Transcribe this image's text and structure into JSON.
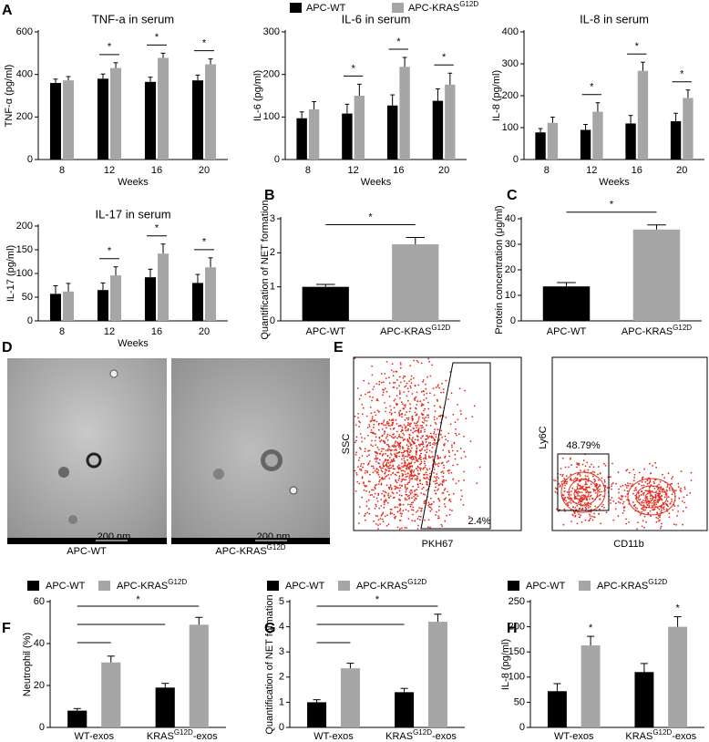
{
  "panel_labels": [
    "A",
    "B",
    "C",
    "D",
    "E",
    "F",
    "G",
    "H"
  ],
  "legend": [
    {
      "name": "APC-WT",
      "color": "#000000"
    },
    {
      "name": "APC-KRAS",
      "name_superscript": "G12D",
      "color": "#a6a6a6"
    }
  ],
  "chart_data": [
    {
      "type": "bar",
      "title": "TNF-a in serum",
      "y_label": "TNF-α (pg/ml)",
      "x_label": "Weeks",
      "categories": [
        "8",
        "12",
        "16",
        "20"
      ],
      "series": [
        {
          "color": "#000000",
          "values": [
            360,
            380,
            365,
            372
          ],
          "errors": [
            18,
            22,
            22,
            25
          ]
        },
        {
          "color": "#a6a6a6",
          "values": [
            372,
            430,
            478,
            448
          ],
          "errors": [
            18,
            25,
            22,
            25
          ]
        }
      ],
      "significance": [
        null,
        "*",
        "*",
        "*"
      ],
      "ylim": [
        0,
        600
      ],
      "yticks": [
        0,
        200,
        400,
        600
      ]
    },
    {
      "type": "bar",
      "title": "IL-6 in serum",
      "y_label": "IL-6 (pg/ml)",
      "x_label": "Weeks",
      "categories": [
        "8",
        "12",
        "16",
        "20"
      ],
      "series": [
        {
          "color": "#000000",
          "values": [
            97,
            108,
            127,
            138
          ],
          "errors": [
            15,
            22,
            25,
            28
          ]
        },
        {
          "color": "#a6a6a6",
          "values": [
            118,
            150,
            218,
            176
          ],
          "errors": [
            18,
            27,
            22,
            27
          ]
        }
      ],
      "significance": [
        null,
        "*",
        "*",
        "*"
      ],
      "ylim": [
        0,
        300
      ],
      "yticks": [
        0,
        100,
        200,
        300
      ]
    },
    {
      "type": "bar",
      "title": "IL-8 in serum",
      "y_label": "IL-8 (pg/ml)",
      "x_label": "Weeks",
      "categories": [
        "8",
        "12",
        "16",
        "20"
      ],
      "series": [
        {
          "color": "#000000",
          "values": [
            85,
            93,
            113,
            120
          ],
          "errors": [
            12,
            17,
            25,
            25
          ]
        },
        {
          "color": "#a6a6a6",
          "values": [
            115,
            150,
            278,
            193
          ],
          "errors": [
            18,
            28,
            27,
            25
          ]
        }
      ],
      "significance": [
        null,
        "*",
        "*",
        "*"
      ],
      "ylim": [
        0,
        400
      ],
      "yticks": [
        0,
        100,
        200,
        300,
        400
      ]
    },
    {
      "type": "bar",
      "title": "IL-17 in serum",
      "y_label": "IL-17 (pg/ml)",
      "x_label": "Weeks",
      "categories": [
        "8",
        "12",
        "16",
        "20"
      ],
      "series": [
        {
          "color": "#000000",
          "values": [
            57,
            65,
            92,
            80
          ],
          "errors": [
            17,
            15,
            17,
            18
          ]
        },
        {
          "color": "#a6a6a6",
          "values": [
            62,
            96,
            142,
            113
          ],
          "errors": [
            17,
            18,
            20,
            20
          ]
        }
      ],
      "significance": [
        null,
        "*",
        "*",
        "*"
      ],
      "ylim": [
        0,
        200
      ],
      "yticks": [
        0,
        50,
        100,
        150,
        200
      ]
    },
    {
      "type": "bar",
      "y_label": "Quantification of NET formation",
      "categories": [
        "APC-WT",
        {
          "base": "APC-KRAS",
          "superscript": "G12D"
        }
      ],
      "values": [
        1.0,
        2.25
      ],
      "errors": [
        0.07,
        0.2
      ],
      "colors": [
        "#000000",
        "#a6a6a6"
      ],
      "significance": "*",
      "ylim": [
        0,
        3
      ],
      "yticks": [
        0,
        1,
        2,
        3
      ]
    },
    {
      "type": "bar",
      "y_label": "Protein concentration (μg/ml)",
      "categories": [
        "APC-WT",
        {
          "base": "APC-KRAS",
          "superscript": "G12D"
        }
      ],
      "values": [
        13.5,
        35.8
      ],
      "errors": [
        1.5,
        1.8
      ],
      "colors": [
        "#000000",
        "#a6a6a6"
      ],
      "significance": "*",
      "ylim": [
        0,
        40
      ],
      "yticks": [
        0,
        10,
        20,
        30,
        40
      ]
    },
    {
      "type": "bar",
      "y_label": "Neutrophil (%)",
      "categories": [
        "WT-exos",
        {
          "base": "KRAS",
          "superscript": "G12D",
          "suffix": "-exos"
        }
      ],
      "series": [
        {
          "name": "APC-WT",
          "color": "#000000",
          "values": [
            8,
            19
          ],
          "errors": [
            1,
            2
          ]
        },
        {
          "name": "APC-KRAS",
          "name_superscript": "G12D",
          "color": "#a6a6a6",
          "values": [
            31,
            49
          ],
          "errors": [
            3,
            3.5
          ]
        }
      ],
      "brackets": [
        {
          "from": [
            0,
            0
          ],
          "to": [
            1,
            0
          ]
        },
        {
          "from": [
            0,
            0
          ],
          "to": [
            0,
            1
          ]
        },
        {
          "from": [
            0,
            0
          ],
          "to": [
            1,
            1
          ],
          "text": "*"
        }
      ],
      "ylim": [
        0,
        60
      ],
      "yticks": [
        0,
        20,
        40,
        60
      ]
    },
    {
      "type": "bar",
      "y_label": "Quantification of NET formation",
      "categories": [
        "WT-exos",
        {
          "base": "KRAS",
          "superscript": "G12D",
          "suffix": "-exos"
        }
      ],
      "series": [
        {
          "name": "APC-WT",
          "color": "#000000",
          "values": [
            1.0,
            1.4
          ],
          "errors": [
            0.1,
            0.15
          ]
        },
        {
          "name": "APC-KRAS",
          "name_superscript": "G12D",
          "color": "#a6a6a6",
          "values": [
            2.35,
            4.2
          ],
          "errors": [
            0.2,
            0.3
          ]
        }
      ],
      "brackets": [
        {
          "from": [
            0,
            0
          ],
          "to": [
            1,
            0
          ]
        },
        {
          "from": [
            0,
            0
          ],
          "to": [
            0,
            1
          ]
        },
        {
          "from": [
            0,
            0
          ],
          "to": [
            1,
            1
          ],
          "text": "*"
        }
      ],
      "ylim": [
        0,
        5
      ],
      "yticks": [
        0,
        1,
        2,
        3,
        4,
        5
      ]
    },
    {
      "type": "bar",
      "y_label": "IL-8 (pg/ml)",
      "categories": [
        "WT-exos",
        {
          "base": "KRAS",
          "superscript": "G12D",
          "suffix": "-exos"
        }
      ],
      "series": [
        {
          "name": "APC-WT",
          "color": "#000000",
          "values": [
            72,
            110
          ],
          "errors": [
            15,
            17
          ]
        },
        {
          "name": "APC-KRAS",
          "name_superscript": "G12D",
          "color": "#a6a6a6",
          "values": [
            163,
            200
          ],
          "errors": [
            18,
            20
          ],
          "significance": [
            "*",
            "*"
          ]
        }
      ],
      "ylim": [
        0,
        250
      ],
      "yticks": [
        0,
        50,
        100,
        150,
        200,
        250
      ]
    }
  ],
  "micrographs": [
    {
      "caption": "APC-WT",
      "scale_label": "200 nm"
    },
    {
      "caption": {
        "base": "APC-KRAS",
        "superscript": "G12D"
      },
      "scale_label": "200 nm"
    }
  ],
  "flow": [
    {
      "y_label": "SSC",
      "x_label": "PKH67",
      "gate_label": "2.4%"
    },
    {
      "y_label": "Ly6C",
      "x_label": "CD11b",
      "gate_label": "48.79%"
    }
  ]
}
